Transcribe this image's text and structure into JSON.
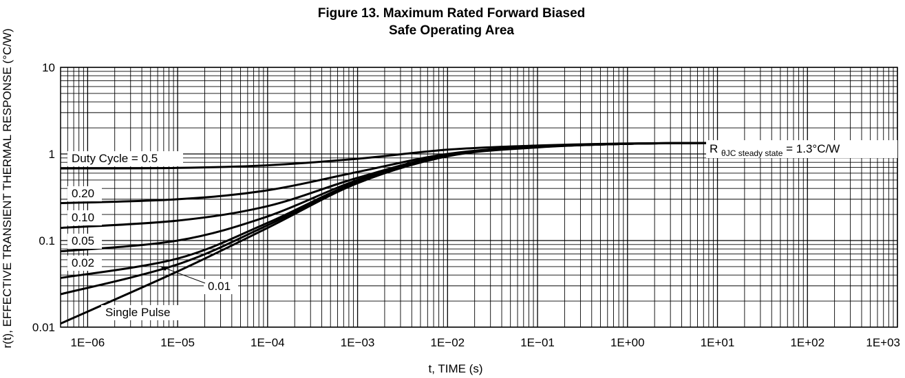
{
  "chart_data": {
    "type": "line",
    "title_line1": "Figure 13. Maximum Rated Forward Biased",
    "title_line2": "Safe Operating Area",
    "xlabel": "t, TIME (s)",
    "ylabel": "r(t), EFFECTIVE TRANSIENT THERMAL RESPONSE (°C/W)",
    "x_scale": "log",
    "y_scale": "log",
    "xlim": [
      5e-07,
      1000
    ],
    "ylim": [
      0.01,
      10
    ],
    "x_tick_labels": [
      "1E−06",
      "1E−05",
      "1E−04",
      "1E−03",
      "1E−02",
      "1E−01",
      "1E+00",
      "1E+01",
      "1E+02",
      "1E+03"
    ],
    "y_tick_labels": [
      "0.01",
      "0.1",
      "1",
      "10"
    ],
    "grid": true,
    "series": [
      {
        "name": "Duty Cycle = 0.5",
        "x": [
          5e-07,
          1e-05,
          0.0001,
          0.001,
          0.01,
          0.1,
          1,
          10,
          1000
        ],
        "y": [
          0.68,
          0.69,
          0.74,
          0.88,
          1.12,
          1.25,
          1.32,
          1.34,
          1.34
        ]
      },
      {
        "name": "0.20",
        "x": [
          5e-07,
          1e-05,
          0.0001,
          0.001,
          0.01,
          0.1,
          1,
          10,
          1000
        ],
        "y": [
          0.27,
          0.3,
          0.38,
          0.62,
          1.0,
          1.22,
          1.31,
          1.34,
          1.34
        ]
      },
      {
        "name": "0.10",
        "x": [
          5e-07,
          1e-05,
          0.0001,
          0.001,
          0.01,
          0.1,
          1,
          10,
          1000
        ],
        "y": [
          0.14,
          0.17,
          0.25,
          0.53,
          0.98,
          1.21,
          1.31,
          1.34,
          1.34
        ]
      },
      {
        "name": "0.05",
        "x": [
          5e-07,
          1e-05,
          0.0001,
          0.001,
          0.01,
          0.1,
          1,
          10,
          1000
        ],
        "y": [
          0.075,
          0.1,
          0.19,
          0.5,
          0.96,
          1.2,
          1.31,
          1.34,
          1.34
        ]
      },
      {
        "name": "0.02",
        "x": [
          5e-07,
          1e-05,
          0.0001,
          0.001,
          0.01,
          0.1,
          1,
          10,
          1000
        ],
        "y": [
          0.037,
          0.062,
          0.16,
          0.48,
          0.95,
          1.2,
          1.31,
          1.34,
          1.34
        ]
      },
      {
        "name": "0.01",
        "x": [
          5e-07,
          1e-05,
          0.0001,
          0.001,
          0.01,
          0.1,
          1,
          10,
          1000
        ],
        "y": [
          0.024,
          0.053,
          0.15,
          0.47,
          0.95,
          1.2,
          1.31,
          1.34,
          1.34
        ]
      },
      {
        "name": "Single Pulse",
        "x": [
          5e-07,
          1e-05,
          0.0001,
          0.001,
          0.01,
          0.1,
          1,
          10,
          1000
        ],
        "y": [
          0.011,
          0.044,
          0.14,
          0.46,
          0.94,
          1.19,
          1.31,
          1.34,
          1.34
        ]
      }
    ],
    "annotation_main": "R",
    "annotation_sub": "θJC steady state",
    "annotation_tail": " = 1.3°C/W"
  }
}
